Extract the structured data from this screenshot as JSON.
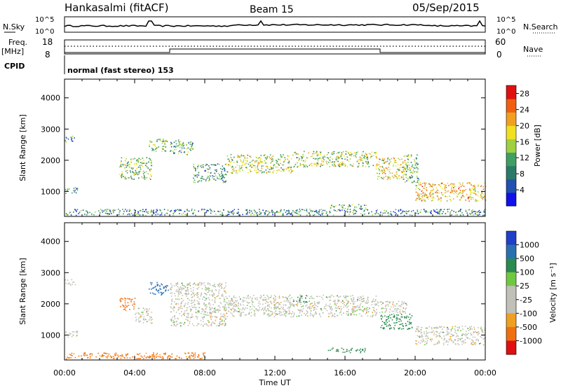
{
  "header": {
    "station": "Hankasalmi (fitACF)",
    "beam": "Beam 15",
    "date": "05/Sep/2015"
  },
  "top_panel": {
    "left_label": "N.Sky",
    "right_label": "N.Search",
    "left_ticks": [
      "10^5",
      "10^0"
    ],
    "right_ticks": [
      "10^5",
      "10^0"
    ]
  },
  "freq_panel": {
    "left_label_1": "Freq.",
    "left_label_2": "[MHz]",
    "right_label": "Nave",
    "left_ticks": [
      "18",
      "8"
    ],
    "right_ticks": [
      "60",
      "0"
    ]
  },
  "cpid": {
    "label": "CPID",
    "text": "normal (fast stereo) 153"
  },
  "colors": {
    "power_scale": [
      "#1010e8",
      "#2050b0",
      "#2a7a68",
      "#3f9f62",
      "#9fd040",
      "#f0e020",
      "#f0a020",
      "#f06010",
      "#e01010"
    ],
    "velocity_scale": [
      "#2040c8",
      "#2a6fb0",
      "#2a8a50",
      "#70c840",
      "#c0c0b8",
      "#c0c0b8",
      "#f0a020",
      "#f07010",
      "#e01010"
    ],
    "ground_scatter": "#c0c0b8"
  },
  "chart_data": [
    {
      "type": "heatmap",
      "title": "Power",
      "ylabel": "Slant Range [km]",
      "y_ticks": [
        "4000",
        "3000",
        "2000",
        "1000"
      ],
      "ylim": [
        200,
        4600
      ],
      "x_ticks": [
        "00:00",
        "04:00",
        "08:00",
        "12:00",
        "16:00",
        "20:00",
        "00:00"
      ],
      "colorbar": {
        "label": "Power [dB]",
        "ticks": [
          "28",
          "24",
          "20",
          "16",
          "12",
          "8",
          "4"
        ],
        "range": [
          0,
          30
        ]
      },
      "regions": [
        {
          "t0": 0.0,
          "t1": 0.6,
          "r0": 2600,
          "r1": 2800,
          "v": 8
        },
        {
          "t0": 0.0,
          "t1": 0.8,
          "r0": 950,
          "r1": 1150,
          "v": 10
        },
        {
          "t0": 3.1,
          "t1": 5.0,
          "r0": 1400,
          "r1": 2100,
          "v": 14
        },
        {
          "t0": 4.8,
          "t1": 5.9,
          "r0": 2300,
          "r1": 2700,
          "v": 13
        },
        {
          "t0": 6.0,
          "t1": 7.3,
          "r0": 2200,
          "r1": 2700,
          "v": 12
        },
        {
          "t0": 7.3,
          "t1": 9.2,
          "r0": 1300,
          "r1": 1900,
          "v": 10
        },
        {
          "t0": 9.2,
          "t1": 13.0,
          "r0": 1600,
          "r1": 2200,
          "v": 16
        },
        {
          "t0": 13.0,
          "t1": 17.8,
          "r0": 1800,
          "r1": 2300,
          "v": 15
        },
        {
          "t0": 17.7,
          "t1": 19.5,
          "r0": 1400,
          "r1": 2100,
          "v": 18
        },
        {
          "t0": 19.3,
          "t1": 20.2,
          "r0": 1300,
          "r1": 2200,
          "v": 12
        },
        {
          "t0": 20.0,
          "t1": 24.0,
          "r0": 700,
          "r1": 1300,
          "v": 20
        },
        {
          "t0": 15.0,
          "t1": 17.2,
          "r0": 450,
          "r1": 600,
          "v": 12
        },
        {
          "t0": 0.0,
          "t1": 24.0,
          "r0": 250,
          "r1": 450,
          "v": 9
        }
      ]
    },
    {
      "type": "heatmap",
      "title": "Velocity",
      "ylabel": "Slant Range [km]",
      "xlabel": "Time UT",
      "y_ticks": [
        "4000",
        "3000",
        "2000",
        "1000"
      ],
      "ylim": [
        200,
        4600
      ],
      "x_ticks": [
        "00:00",
        "04:00",
        "08:00",
        "12:00",
        "16:00",
        "20:00",
        "00:00"
      ],
      "colorbar": {
        "label": "Velocity [m s⁻¹]",
        "ticks": [
          "1000",
          "500",
          "100",
          "25",
          "-25",
          "-100",
          "-500",
          "-1000"
        ]
      },
      "regions": [
        {
          "t0": 0.0,
          "t1": 0.6,
          "r0": 2600,
          "r1": 2800,
          "v": 0
        },
        {
          "t0": 0.0,
          "t1": 0.8,
          "r0": 950,
          "r1": 1150,
          "v": 0
        },
        {
          "t0": 3.1,
          "t1": 4.0,
          "r0": 1800,
          "r1": 2200,
          "v": -400
        },
        {
          "t0": 4.0,
          "t1": 5.0,
          "r0": 1400,
          "r1": 1900,
          "v": 0
        },
        {
          "t0": 4.8,
          "t1": 5.9,
          "r0": 2300,
          "r1": 2700,
          "v": 600
        },
        {
          "t0": 6.0,
          "t1": 9.2,
          "r0": 1300,
          "r1": 2700,
          "v": 0
        },
        {
          "t0": 9.2,
          "t1": 17.8,
          "r0": 1600,
          "r1": 2300,
          "v": 0
        },
        {
          "t0": 13.2,
          "t1": 13.8,
          "r0": 2050,
          "r1": 2300,
          "v": 150
        },
        {
          "t0": 18.0,
          "t1": 19.8,
          "r0": 1200,
          "r1": 1700,
          "v": 200
        },
        {
          "t0": 17.7,
          "t1": 19.5,
          "r0": 1700,
          "r1": 2100,
          "v": 0
        },
        {
          "t0": 20.0,
          "t1": 24.0,
          "r0": 700,
          "r1": 1300,
          "v": 0
        },
        {
          "t0": 15.0,
          "t1": 17.2,
          "r0": 450,
          "r1": 600,
          "v": 150
        },
        {
          "t0": 0.0,
          "t1": 8.0,
          "r0": 250,
          "r1": 450,
          "v": -120
        }
      ]
    }
  ]
}
